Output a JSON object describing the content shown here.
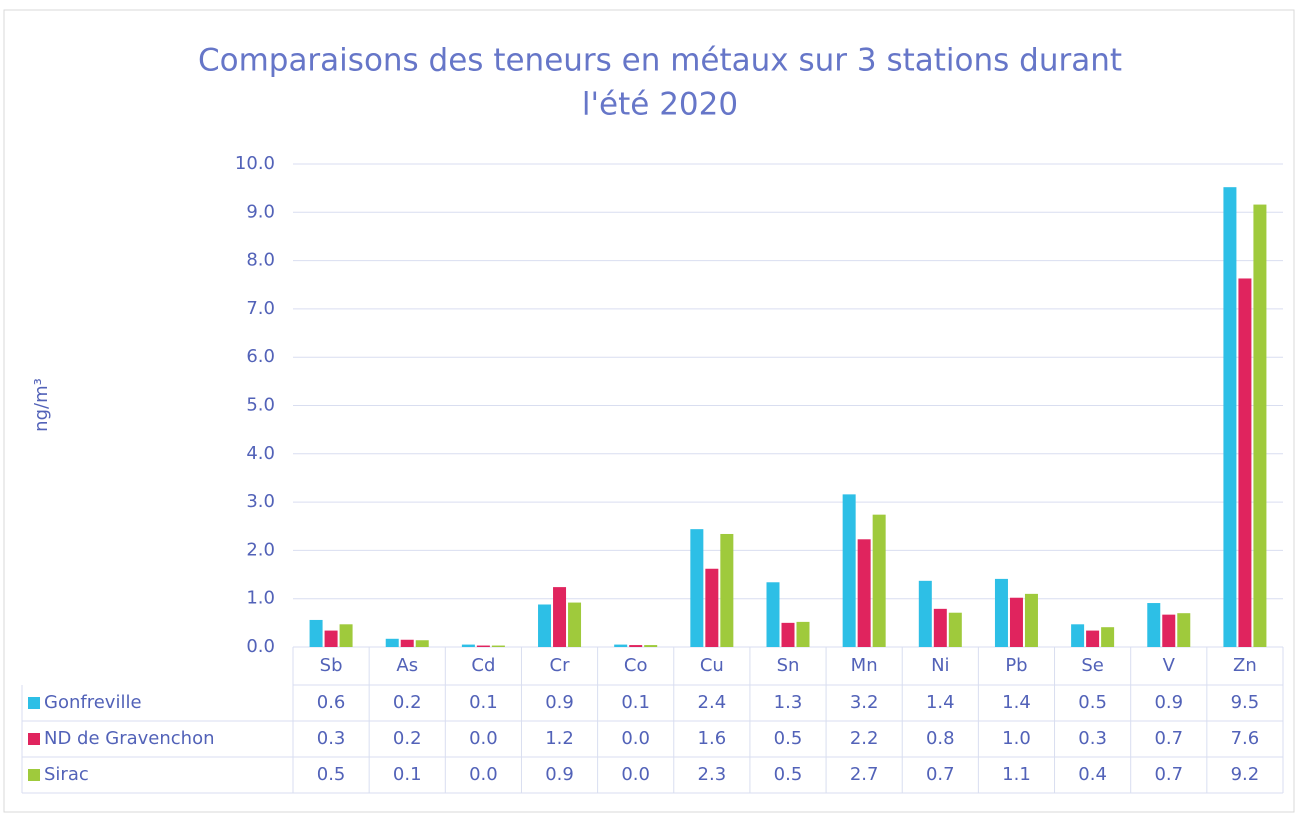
{
  "chart_data": {
    "type": "bar",
    "title": "Comparaisons des teneurs en métaux sur 3 stations durant",
    "subtitle": "l'été 2020",
    "y_label": "ng/m³",
    "categories": [
      "Sb",
      "As",
      "Cd",
      "Cr",
      "Co",
      "Cu",
      "Sn",
      "Mn",
      "Ni",
      "Pb",
      "Se",
      "V",
      "Zn"
    ],
    "series": [
      {
        "name": "Gonfreville",
        "color": "#2dbfe6",
        "values": [
          0.56,
          0.17,
          0.05,
          0.88,
          0.05,
          2.44,
          1.34,
          3.16,
          1.37,
          1.41,
          0.47,
          0.91,
          9.52
        ],
        "value_labels": [
          "0.6",
          "0.2",
          "0.1",
          "0.9",
          "0.1",
          "2.4",
          "1.3",
          "3.2",
          "1.4",
          "1.4",
          "0.5",
          "0.9",
          "9.5"
        ]
      },
      {
        "name": "ND de Gravenchon",
        "color": "#e0245e",
        "values": [
          0.34,
          0.15,
          0.03,
          1.24,
          0.04,
          1.62,
          0.5,
          2.23,
          0.79,
          1.02,
          0.34,
          0.67,
          7.63
        ],
        "value_labels": [
          "0.3",
          "0.2",
          "0.0",
          "1.2",
          "0.0",
          "1.6",
          "0.5",
          "2.2",
          "0.8",
          "1.0",
          "0.3",
          "0.7",
          "7.6"
        ]
      },
      {
        "name": "Sirac",
        "color": "#9fca3c",
        "values": [
          0.47,
          0.14,
          0.03,
          0.92,
          0.04,
          2.34,
          0.52,
          2.74,
          0.71,
          1.1,
          0.41,
          0.7,
          9.16
        ],
        "value_labels": [
          "0.5",
          "0.1",
          "0.0",
          "0.9",
          "0.0",
          "2.3",
          "0.5",
          "2.7",
          "0.7",
          "1.1",
          "0.4",
          "0.7",
          "9.2"
        ]
      }
    ],
    "ylim": [
      0,
      10
    ],
    "yticks": [
      {
        "value": 0,
        "label": "0.0"
      },
      {
        "value": 1,
        "label": "1.0"
      },
      {
        "value": 2,
        "label": "2.0"
      },
      {
        "value": 3,
        "label": "3.0"
      },
      {
        "value": 4,
        "label": "4.0"
      },
      {
        "value": 5,
        "label": "5.0"
      },
      {
        "value": 6,
        "label": "6.0"
      },
      {
        "value": 7,
        "label": "7.0"
      },
      {
        "value": 8,
        "label": "8.0"
      },
      {
        "value": 9,
        "label": "9.0"
      },
      {
        "value": 10,
        "label": "10.0"
      }
    ],
    "grid": true
  }
}
